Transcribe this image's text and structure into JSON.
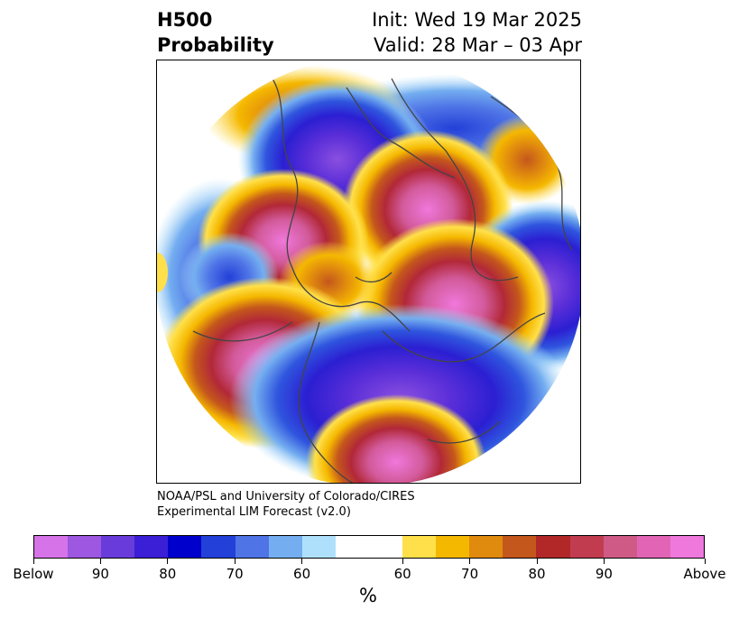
{
  "header": {
    "title_line1": "H500",
    "title_line2": "Probability",
    "init": "Init: Wed 19 Mar 2025",
    "valid": "Valid: 28 Mar – 03 Apr"
  },
  "credit": {
    "line1": "NOAA/PSL and University of Colorado/CIRES",
    "line2": "Experimental LIM Forecast (v2.0)"
  },
  "colorbar": {
    "unit": "%",
    "colors": [
      "#d673e8",
      "#9e57e0",
      "#6a3bdb",
      "#3a1fd6",
      "#0000cc",
      "#2340d8",
      "#4f74e6",
      "#74aef0",
      "#aee0fb",
      "#ffffff",
      "#ffffff",
      "#ffe04a",
      "#f5b800",
      "#e08a0e",
      "#c4571c",
      "#b22828",
      "#c23c50",
      "#cf5a86",
      "#e265b5",
      "#ef78dc"
    ],
    "tick_labels": [
      "Below",
      "90",
      "80",
      "70",
      "60",
      "60",
      "70",
      "80",
      "90",
      "Above"
    ]
  },
  "map": {
    "projection": "north-polar-stereographic",
    "below_color": "#5a2ed8",
    "above_color": "#e070c8"
  }
}
